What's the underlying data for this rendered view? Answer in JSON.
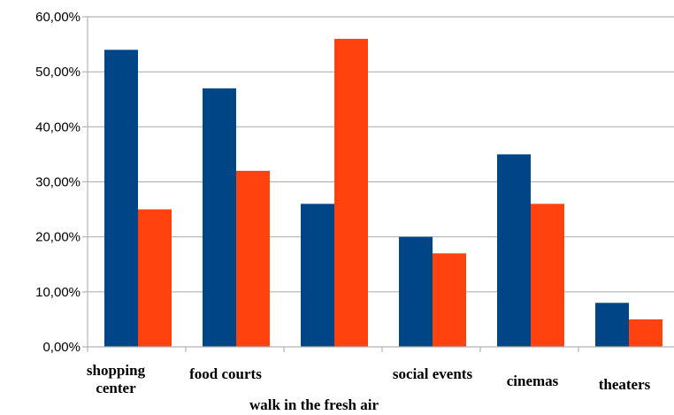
{
  "chart_data": {
    "type": "bar",
    "categories": [
      "shopping center",
      "food courts",
      "walk in the fresh air",
      "social events",
      "cinemas",
      "theaters"
    ],
    "category_label_lines": [
      [
        "shopping",
        "center"
      ],
      [
        "food courts"
      ],
      [
        "walk in the fresh air"
      ],
      [
        "social events"
      ],
      [
        "cinemas"
      ],
      [
        "theaters"
      ]
    ],
    "series": [
      {
        "values": [
          54,
          47,
          26,
          20,
          35,
          8
        ],
        "color": "#004586"
      },
      {
        "values": [
          25,
          32,
          56,
          17,
          26,
          5
        ],
        "color": "#ff420e"
      }
    ],
    "ylim": [
      0,
      60
    ],
    "yticks": [
      0,
      10,
      20,
      30,
      40,
      50,
      60
    ],
    "ytick_labels": [
      "0,00%",
      "10,00%",
      "20,00%",
      "30,00%",
      "40,00%",
      "50,00%",
      "60,00%"
    ],
    "grid": true,
    "title": "",
    "xlabel": "",
    "ylabel": "",
    "legend": "none"
  }
}
